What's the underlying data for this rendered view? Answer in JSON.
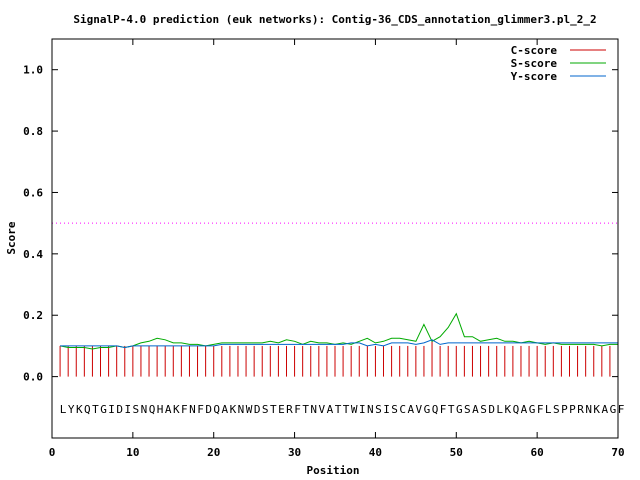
{
  "chart_data": {
    "type": "line",
    "title": "SignalP-4.0 prediction (euk networks): Contig-36_CDS_annotation_glimmer3.pl_2_2",
    "xlabel": "Position",
    "ylabel": "Score",
    "xlim": [
      0,
      70
    ],
    "ylim": [
      -0.2,
      1.1
    ],
    "x_ticks": [
      "0",
      "10",
      "20",
      "30",
      "40",
      "50",
      "60",
      "70"
    ],
    "y_ticks": [
      "0.0",
      "0.2",
      "0.4",
      "0.6",
      "0.8",
      "1.0"
    ],
    "legend_position": "top-right",
    "threshold": 0.5,
    "threshold_color": "#ff00ff",
    "sequence": "LYKQTGIDISNQHAKFNFDQAKNWDSTERFTNVATTWINSISCAVGQFTGSASDLKQAGFLSPPRNKAGF",
    "series": [
      {
        "name": "C-score",
        "style": "impulses",
        "color": "#cc0000",
        "values": [
          0.1,
          0.1,
          0.1,
          0.1,
          0.1,
          0.1,
          0.1,
          0.1,
          0.1,
          0.1,
          0.1,
          0.1,
          0.1,
          0.1,
          0.1,
          0.1,
          0.1,
          0.1,
          0.1,
          0.1,
          0.1,
          0.1,
          0.1,
          0.1,
          0.1,
          0.1,
          0.1,
          0.1,
          0.1,
          0.1,
          0.1,
          0.1,
          0.1,
          0.1,
          0.1,
          0.1,
          0.1,
          0.1,
          0.1,
          0.1,
          0.1,
          0.1,
          0.1,
          0.1,
          0.1,
          0.1,
          0.12,
          0.1,
          0.1,
          0.1,
          0.1,
          0.1,
          0.1,
          0.1,
          0.1,
          0.1,
          0.1,
          0.1,
          0.1,
          0.1,
          0.1,
          0.1,
          0.1,
          0.1,
          0.1,
          0.1,
          0.1,
          0.1,
          0.1,
          0.1
        ]
      },
      {
        "name": "S-score",
        "style": "line",
        "color": "#00aa00",
        "values": [
          0.1,
          0.095,
          0.095,
          0.095,
          0.09,
          0.095,
          0.095,
          0.1,
          0.095,
          0.1,
          0.11,
          0.115,
          0.125,
          0.12,
          0.11,
          0.11,
          0.105,
          0.105,
          0.1,
          0.105,
          0.11,
          0.11,
          0.11,
          0.11,
          0.11,
          0.11,
          0.115,
          0.11,
          0.12,
          0.115,
          0.105,
          0.115,
          0.11,
          0.11,
          0.105,
          0.11,
          0.105,
          0.115,
          0.125,
          0.11,
          0.115,
          0.125,
          0.125,
          0.12,
          0.115,
          0.17,
          0.115,
          0.13,
          0.16,
          0.205,
          0.13,
          0.13,
          0.115,
          0.12,
          0.125,
          0.115,
          0.115,
          0.11,
          0.115,
          0.11,
          0.105,
          0.11,
          0.105,
          0.105,
          0.105,
          0.105,
          0.105,
          0.1,
          0.105,
          0.105
        ]
      },
      {
        "name": "Y-score",
        "style": "line",
        "color": "#0066cc",
        "values": [
          0.1,
          0.1,
          0.1,
          0.1,
          0.1,
          0.1,
          0.1,
          0.1,
          0.095,
          0.1,
          0.1,
          0.1,
          0.1,
          0.1,
          0.1,
          0.1,
          0.1,
          0.1,
          0.1,
          0.1,
          0.105,
          0.105,
          0.105,
          0.105,
          0.105,
          0.105,
          0.105,
          0.105,
          0.105,
          0.105,
          0.105,
          0.105,
          0.105,
          0.105,
          0.105,
          0.105,
          0.11,
          0.11,
          0.1,
          0.105,
          0.1,
          0.11,
          0.11,
          0.11,
          0.105,
          0.11,
          0.12,
          0.105,
          0.11,
          0.11,
          0.11,
          0.11,
          0.11,
          0.11,
          0.11,
          0.11,
          0.11,
          0.11,
          0.11,
          0.11,
          0.11,
          0.11,
          0.11,
          0.11,
          0.11,
          0.11,
          0.11,
          0.11,
          0.11,
          0.11
        ]
      }
    ]
  }
}
